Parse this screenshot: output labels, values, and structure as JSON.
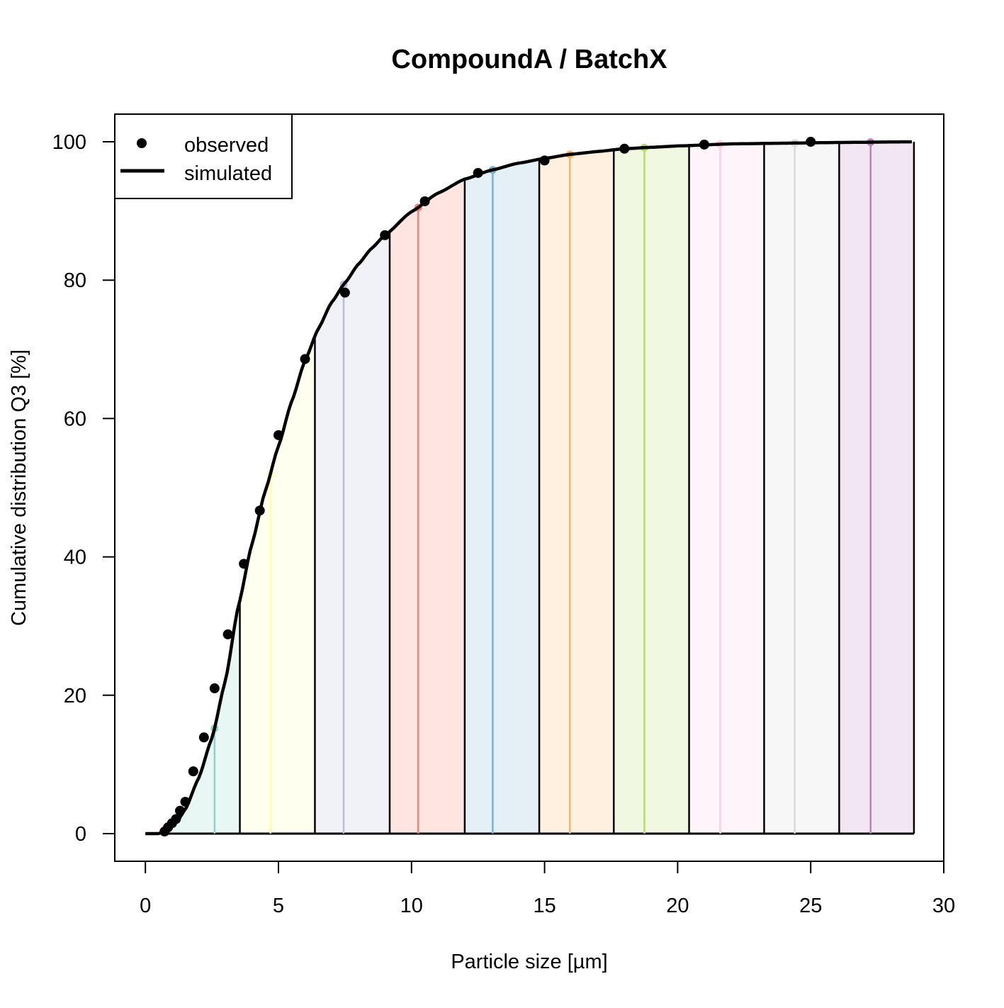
{
  "chart_data": {
    "type": "line",
    "title": "CompoundA / BatchX",
    "xlabel": "Particle size [µm]",
    "ylabel": "Cumulative distribution Q3 [%]",
    "xlim": [
      -1.15,
      30
    ],
    "ylim": [
      -4,
      104
    ],
    "xticks": [
      0,
      5,
      10,
      15,
      20,
      25,
      30
    ],
    "yticks": [
      0,
      20,
      40,
      60,
      80,
      100
    ],
    "grid": false,
    "legend": {
      "position": "top-left",
      "entries": [
        {
          "label": "observed",
          "marker": "point"
        },
        {
          "label": "simulated",
          "marker": "line"
        }
      ]
    },
    "observed": {
      "x": [
        0.72,
        0.85,
        1.0,
        1.15,
        1.3,
        1.5,
        1.8,
        2.2,
        2.6,
        3.1,
        3.7,
        4.3,
        5.0,
        6.0,
        7.5,
        9.0,
        10.5,
        12.5,
        15.0,
        18.0,
        21.0,
        25.0
      ],
      "y": [
        0.3,
        0.9,
        1.5,
        2.1,
        3.3,
        4.6,
        9.0,
        13.9,
        21.0,
        28.8,
        39.0,
        46.7,
        57.6,
        68.6,
        78.2,
        86.5,
        91.4,
        95.5,
        97.3,
        99.0,
        99.6,
        100.0
      ]
    },
    "simulated": {
      "x": [
        0,
        0.5,
        0.8,
        1.0,
        1.2,
        1.5,
        2.0,
        2.5,
        3.0,
        3.5,
        4.0,
        4.5,
        5.0,
        5.5,
        6.0,
        6.5,
        7.0,
        7.5,
        8.0,
        8.5,
        9.0,
        10.0,
        11.0,
        12.0,
        13.0,
        14.0,
        15.0,
        16.0,
        17.0,
        18.0,
        19.0,
        20.0,
        22.0,
        24.0,
        26.0,
        28.8
      ],
      "y": [
        0,
        0,
        0.4,
        1.0,
        1.8,
        3.5,
        8.0,
        13.8,
        22.0,
        33.0,
        41.8,
        49.5,
        56.0,
        62.5,
        68.4,
        73.0,
        76.8,
        79.6,
        82.3,
        84.6,
        86.5,
        89.9,
        92.6,
        94.6,
        95.9,
        96.9,
        97.6,
        98.2,
        98.6,
        99.0,
        99.2,
        99.4,
        99.7,
        99.8,
        99.9,
        100.0
      ]
    },
    "bins": [
      {
        "from": 0.0,
        "to": 3.55,
        "mid": 2.6,
        "color": "#8DD3C7",
        "fill": "#E8F6F4"
      },
      {
        "from": 3.55,
        "to": 6.37,
        "mid": 4.7,
        "color": "#FFFFB3",
        "fill": "#FFFFEF"
      },
      {
        "from": 6.37,
        "to": 9.18,
        "mid": 7.45,
        "color": "#BEBADA",
        "fill": "#F1F1F8"
      },
      {
        "from": 9.18,
        "to": 12.0,
        "mid": 10.25,
        "color": "#FB8072",
        "fill": "#FEE5E2"
      },
      {
        "from": 12.0,
        "to": 14.8,
        "mid": 13.05,
        "color": "#80B1D3",
        "fill": "#E5EFF6"
      },
      {
        "from": 14.8,
        "to": 17.6,
        "mid": 15.95,
        "color": "#FDB462",
        "fill": "#FFF0E0"
      },
      {
        "from": 17.6,
        "to": 20.43,
        "mid": 18.75,
        "color": "#B3DE69",
        "fill": "#F0F8E1"
      },
      {
        "from": 20.43,
        "to": 23.25,
        "mid": 21.6,
        "color": "#FCCDE5",
        "fill": "#FEF5FA"
      },
      {
        "from": 23.25,
        "to": 26.07,
        "mid": 24.4,
        "color": "#D9D9D9",
        "fill": "#F7F7F7"
      },
      {
        "from": 26.07,
        "to": 28.88,
        "mid": 27.25,
        "color": "#BC80BD",
        "fill": "#F2E6F2"
      }
    ]
  }
}
